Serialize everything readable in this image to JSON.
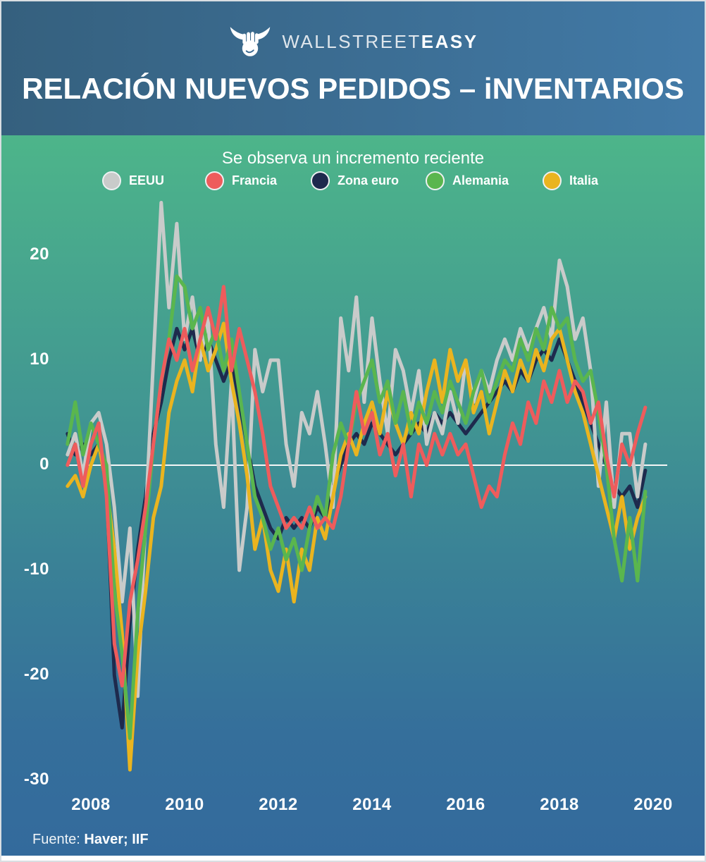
{
  "header": {
    "brand_light": "WALLSTREET",
    "brand_bold": "EASY"
  },
  "footer": {
    "prefix": "Fuente: ",
    "source": "Haver; IIF"
  },
  "chart_data": {
    "type": "line",
    "title": "RELACIÓN NUEVOS PEDIDOS – iNVENTARIOS",
    "subtitle": "Se observa un incremento reciente",
    "xlabel": "",
    "ylabel": "",
    "x_start": 2007.5,
    "x_step_years": 0.16667,
    "x_ticks": [
      2008,
      2010,
      2012,
      2014,
      2016,
      2018,
      2020
    ],
    "y_ticks": [
      20,
      10,
      0,
      -10,
      -20,
      -30
    ],
    "ylim": [
      -32,
      27
    ],
    "grid": false,
    "zero_line": true,
    "legend_position": "top",
    "colors": {
      "header_left": "#35607e",
      "header_right": "#427aa7",
      "background_top": "#4db58a",
      "background_bottom": "#336a9c",
      "text": "#ffffff"
    },
    "series": [
      {
        "name": "EEUU",
        "color": "#c9cbca",
        "values": [
          1,
          3,
          -1,
          4,
          5,
          2,
          -4,
          -13,
          -6,
          -22,
          -5,
          10,
          25,
          15,
          23,
          12,
          16,
          10,
          14,
          2,
          -4,
          8,
          -10,
          -4,
          11,
          7,
          10,
          10,
          2,
          -2,
          5,
          3,
          7,
          2,
          -4,
          14,
          9,
          16,
          6,
          14,
          8,
          3,
          11,
          9,
          5,
          9,
          2,
          5,
          3,
          7,
          4,
          10,
          6,
          9,
          7,
          10,
          12,
          10,
          13,
          11,
          13,
          15,
          12,
          19.5,
          17,
          12,
          14,
          9,
          -2,
          6,
          -4,
          3,
          3,
          -3,
          2
        ]
      },
      {
        "name": "Francia",
        "color": "#ee5c5c",
        "values": [
          0,
          2,
          -2,
          2,
          4,
          -3,
          -17,
          -21,
          -13,
          -9,
          -4,
          2,
          8,
          12,
          10,
          13,
          9,
          12,
          15,
          12,
          17,
          9,
          13,
          10,
          7,
          3,
          -2,
          -4,
          -6,
          -5,
          -6,
          -4,
          -6,
          -5,
          -6,
          -3,
          2,
          7,
          3,
          5,
          1,
          3,
          -1,
          2,
          -3,
          2,
          0,
          3,
          1,
          3,
          1,
          2,
          -1,
          -4,
          -2,
          -3,
          1,
          4,
          2,
          6,
          4,
          8,
          6,
          9,
          6,
          8,
          7,
          4,
          6,
          1,
          -3,
          2,
          0,
          3,
          5.5
        ]
      },
      {
        "name": "Zona euro",
        "color": "#1e2a4d",
        "values": [
          3,
          1,
          2,
          1,
          2,
          -2,
          -20,
          -25,
          -15,
          -8,
          -3,
          3,
          6,
          10,
          13,
          11,
          13,
          10,
          12,
          10,
          8,
          10,
          6,
          2,
          -2,
          -4,
          -6,
          -7,
          -5,
          -6,
          -5,
          -6,
          -4,
          -5,
          -2,
          0,
          2,
          3,
          2,
          4,
          3,
          2,
          1,
          2,
          3,
          4,
          3,
          5,
          4,
          5,
          4,
          3,
          4,
          5,
          6,
          7,
          8,
          7,
          9,
          8,
          10,
          11,
          10,
          12,
          10,
          8,
          6,
          4,
          2,
          0,
          -2,
          -3,
          -2,
          -4,
          -0.5
        ]
      },
      {
        "name": "Alemania",
        "color": "#5ab64e",
        "values": [
          2,
          6,
          1,
          4,
          2,
          0,
          -12,
          -18,
          -26,
          -14,
          -6,
          2,
          8,
          12,
          18,
          17,
          13,
          15,
          11,
          13,
          9,
          12,
          7,
          2,
          -3,
          -5,
          -8,
          -6,
          -9,
          -7,
          -10,
          -6,
          -3,
          -5,
          1,
          4,
          2,
          6,
          8,
          10,
          6,
          8,
          4,
          7,
          3,
          6,
          4,
          7,
          5,
          8,
          6,
          4,
          7,
          9,
          6,
          8,
          10,
          9,
          12,
          10,
          13,
          11,
          15,
          13,
          14,
          10,
          8,
          9,
          5,
          0,
          -7,
          -11,
          -5,
          -11,
          -2.5
        ]
      },
      {
        "name": "Italia",
        "color": "#eab41f",
        "values": [
          -2,
          -1,
          -3,
          0,
          2,
          -2,
          -8,
          -16,
          -29,
          -18,
          -12,
          -5,
          -2,
          5,
          8,
          10,
          7,
          12,
          9,
          11,
          13.5,
          8,
          4,
          -1,
          -8,
          -5,
          -10,
          -12,
          -8,
          -13,
          -8,
          -10,
          -5,
          -7,
          -3,
          1,
          3,
          1,
          4,
          6,
          3,
          7,
          4,
          2,
          5,
          3,
          7,
          10,
          6,
          11,
          8,
          10,
          5,
          7,
          3,
          6,
          9,
          7,
          10,
          8,
          11,
          9,
          12,
          13,
          10,
          7,
          5,
          2,
          -1,
          -4,
          -7,
          -3,
          -8,
          -5,
          -3
        ]
      }
    ]
  }
}
